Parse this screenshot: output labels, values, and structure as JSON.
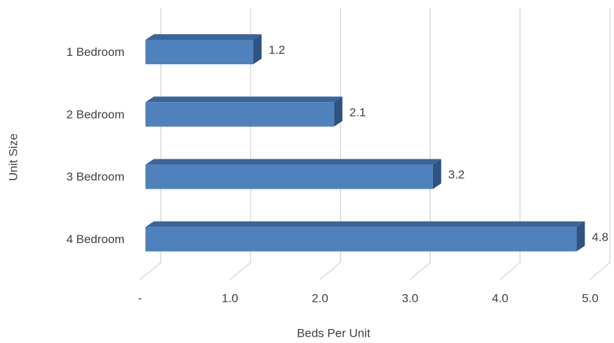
{
  "chart_data": {
    "type": "bar3d-horizontal",
    "categories": [
      "1 Bedroom",
      "2 Bedroom",
      "3 Bedroom",
      "4 Bedroom"
    ],
    "values": [
      1.2,
      2.1,
      3.2,
      4.8
    ],
    "color": "#4f81bd",
    "xlabel": "Beds Per Unit",
    "ylabel": "Unit Size",
    "xlim": [
      0,
      5
    ],
    "xticks": [
      {
        "value": 0,
        "label": "-"
      },
      {
        "value": 1,
        "label": "1.0"
      },
      {
        "value": 2,
        "label": "2.0"
      },
      {
        "value": 3,
        "label": "3.0"
      },
      {
        "value": 4,
        "label": "4.0"
      },
      {
        "value": 5,
        "label": "5.0"
      }
    ],
    "grid": true
  }
}
